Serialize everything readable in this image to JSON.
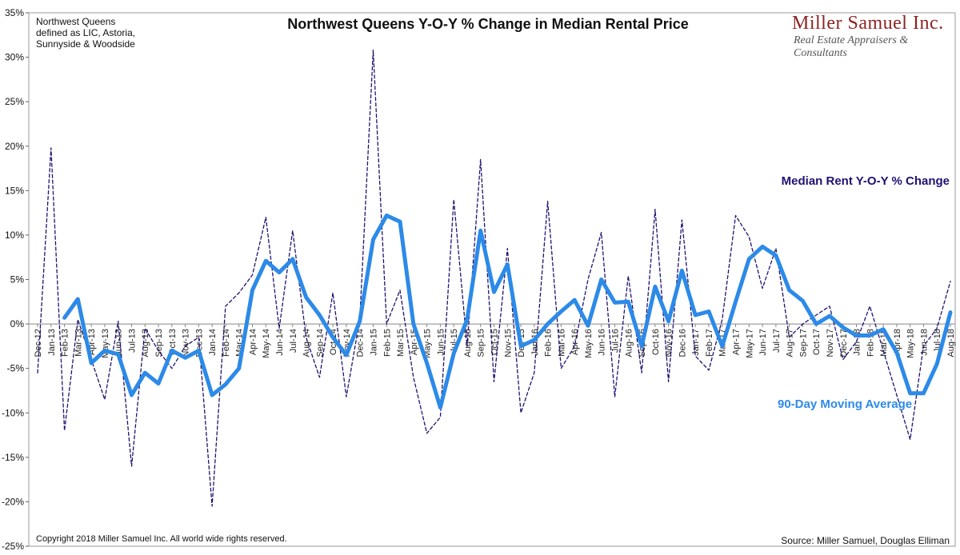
{
  "chart_data": {
    "type": "line",
    "title": "Northwest Queens Y-O-Y % Change in Median Rental Price",
    "note_lines": [
      "Northwest Queens",
      "defined as LIC, Astoria,",
      "Sunnyside & Woodside"
    ],
    "brand": {
      "name": "Miller Samuel Inc.",
      "tagline": "Real Estate Appraisers & Consultants"
    },
    "copyright": "Copyright 2018 Miller Samuel Inc.  All world wide rights reserved.",
    "source": "Source: Miller Samuel, Douglas Elliman",
    "xlabel": "",
    "ylabel": "",
    "ylim": [
      -25,
      35
    ],
    "y_ticks": [
      -25,
      -20,
      -15,
      -10,
      -5,
      0,
      5,
      10,
      15,
      20,
      25,
      30,
      35
    ],
    "y_tick_labels": [
      "-25%",
      "-20%",
      "-15%",
      "-10%",
      "-5%",
      "0%",
      "5%",
      "10%",
      "15%",
      "20%",
      "25%",
      "30%",
      "35%"
    ],
    "grid": false,
    "categories": [
      "Dec-12",
      "Jan-13",
      "Feb-13",
      "Mar-13",
      "Apr-13",
      "May-13",
      "Jun-13",
      "Jul-13",
      "Aug-13",
      "Sep-13",
      "Oct-13",
      "Nov-13",
      "Dec-13",
      "Jan-14",
      "Feb-14",
      "Mar-14",
      "Apr-14",
      "May-14",
      "Jun-14",
      "Jul-14",
      "Aug-14",
      "Sep-14",
      "Oct-14",
      "Nov-14",
      "Dec-14",
      "Jan-15",
      "Feb-15",
      "Mar-15",
      "Apr-15",
      "May-15",
      "Jun-15",
      "Jul-15",
      "Aug-15",
      "Sep-15",
      "Oct-15",
      "Nov-15",
      "Dec-15",
      "Jan-16",
      "Feb-16",
      "Mar-16",
      "Apr-16",
      "May-16",
      "Jun-16",
      "Jul-16",
      "Aug-16",
      "Sep-16",
      "Oct-16",
      "Nov-16",
      "Dec-16",
      "Jan-17",
      "Feb-17",
      "Mar-17",
      "Apr-17",
      "May-17",
      "Jun-17",
      "Jul-17",
      "Aug-17",
      "Sep-17",
      "Oct-17",
      "Nov-17",
      "Dec-17",
      "Jan-18",
      "Feb-18",
      "Mar-18",
      "Apr-18",
      "May-18",
      "Jun-18",
      "Jul-18",
      "Aug-18"
    ],
    "series": [
      {
        "name": "Median Rent Y-O-Y % Change",
        "color": "#1f1270",
        "style": "dashed",
        "values": [
          -5.5,
          19.8,
          -12.0,
          0.5,
          -4.0,
          -8.5,
          0.3,
          -16.0,
          -0.5,
          -3.0,
          -5.0,
          -2.5,
          -1.5,
          -20.5,
          2.0,
          3.5,
          5.5,
          12.0,
          -0.5,
          10.5,
          -1.5,
          -6.0,
          3.5,
          -8.2,
          0.5,
          30.8,
          0.0,
          3.8,
          -6.0,
          -12.3,
          -10.5,
          14.0,
          -2.5,
          18.5,
          -6.5,
          8.5,
          -10.0,
          -5.5,
          13.8,
          -5.0,
          -2.5,
          5.0,
          10.3,
          -8.2,
          5.4,
          -5.5,
          12.9,
          -6.5,
          11.7,
          -3.6,
          -5.2,
          0.5,
          12.2,
          9.8,
          4.0,
          8.5,
          -1.5,
          0.0,
          1.0,
          2.0,
          -4.0,
          -2.0,
          2.0,
          -3.0,
          -8.0,
          -13.0,
          -2.5,
          -0.5,
          4.8
        ]
      },
      {
        "name": "90-Day Moving Average",
        "color": "#2c8ae8",
        "style": "solid",
        "values": [
          null,
          null,
          0.7,
          2.8,
          -4.4,
          -3.0,
          -3.4,
          -8.0,
          -5.5,
          -6.7,
          -3.0,
          -3.8,
          -3.0,
          -8.0,
          -6.8,
          -5.0,
          3.8,
          7.1,
          5.8,
          7.3,
          3.0,
          1.0,
          -1.5,
          -3.5,
          0.3,
          9.5,
          12.2,
          11.5,
          0.0,
          -4.4,
          -9.4,
          -3.3,
          0.5,
          10.5,
          3.6,
          6.7,
          -2.5,
          -1.8,
          0.0,
          1.4,
          2.7,
          -0.2,
          5.0,
          2.4,
          2.5,
          -2.5,
          4.2,
          0.3,
          6.0,
          1.0,
          1.4,
          -2.5,
          2.5,
          7.3,
          8.7,
          7.7,
          3.8,
          2.6,
          0.0,
          0.9,
          -0.4,
          -1.3,
          -1.3,
          -0.6,
          -3.2,
          -7.8,
          -7.8,
          -4.5,
          1.3
        ]
      }
    ],
    "annotations": [
      {
        "text": "Median Rent Y-O-Y % Change",
        "series": 0
      },
      {
        "text": "90-Day Moving Average",
        "series": 1
      }
    ]
  }
}
